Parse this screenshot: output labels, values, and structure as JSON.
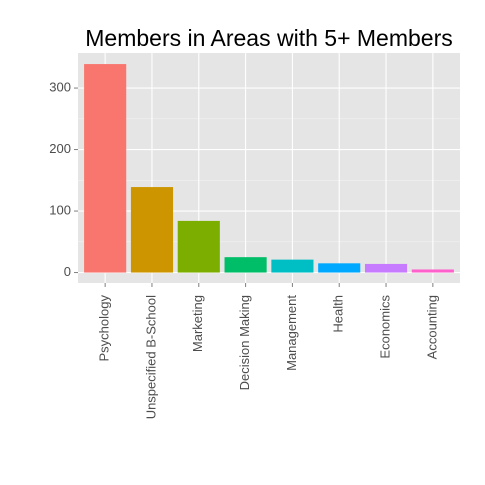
{
  "chart_data": {
    "type": "bar",
    "title": "Members in Areas with 5+ Members",
    "categories": [
      "Psychology",
      "Unspecified B-School",
      "Marketing",
      "Decision Making",
      "Management",
      "Health",
      "Economics",
      "Accounting"
    ],
    "values": [
      339,
      139,
      84,
      25,
      21,
      15,
      14,
      5
    ],
    "colors": [
      "#F8766D",
      "#CD9600",
      "#7CAE00",
      "#00BE67",
      "#00BFC4",
      "#00A9FF",
      "#C77CFF",
      "#FF61CC"
    ],
    "ylim": [
      -17,
      357
    ],
    "yticks": [
      0,
      100,
      200,
      300
    ],
    "minor_yticks": [
      50,
      150,
      250
    ],
    "grid": true
  }
}
